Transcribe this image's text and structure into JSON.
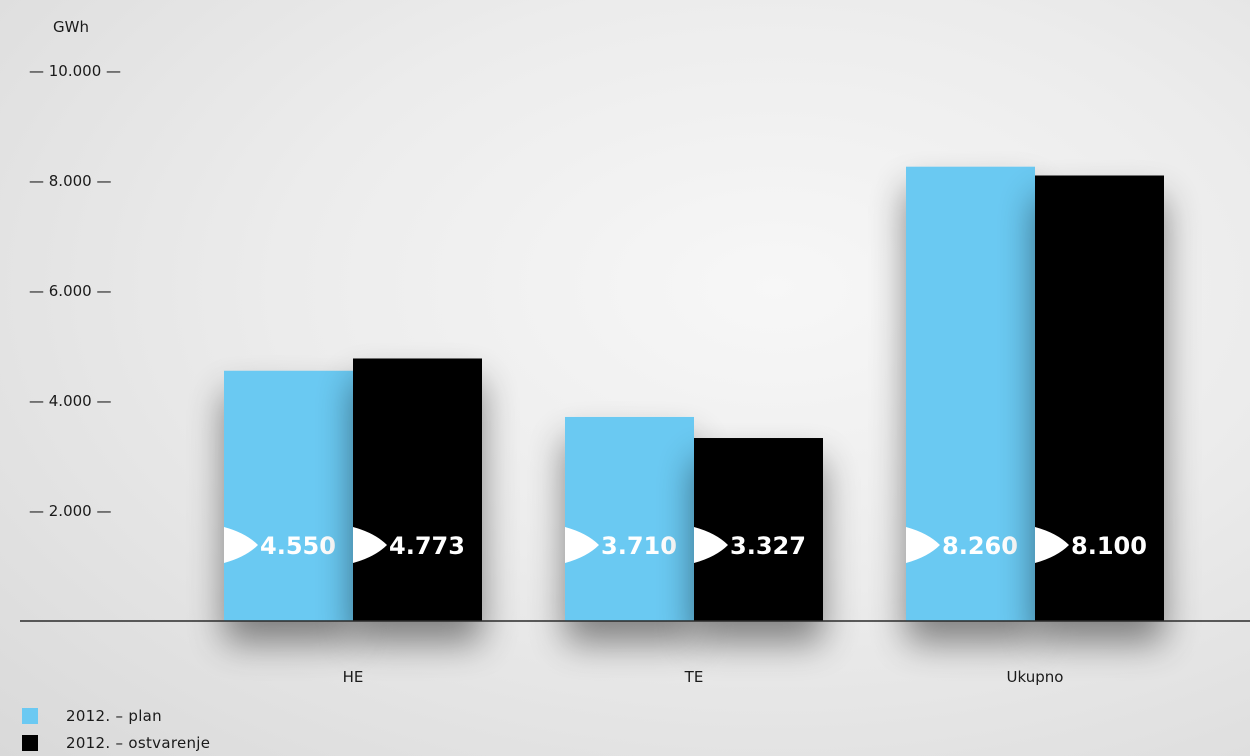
{
  "chart_data": {
    "type": "bar",
    "unit_label": "GWh",
    "categories": [
      "HE",
      "TE",
      "Ukupno"
    ],
    "series": [
      {
        "name": "2012. – plan",
        "color": "#6bc9f2",
        "values": [
          4550,
          3710,
          8260
        ],
        "labels": [
          "4.550",
          "3.710",
          "8.260"
        ]
      },
      {
        "name": "2012. – ostvarenje",
        "color": "#000000",
        "values": [
          4773,
          3327,
          8100
        ],
        "labels": [
          "4.773",
          "3.327",
          "8.100"
        ]
      }
    ],
    "ylim": [
      0,
      10000
    ],
    "yticks": [
      2000,
      4000,
      6000,
      8000,
      10000
    ],
    "ytick_labels": [
      "— 2.000 —",
      "— 4.000 —",
      "— 6.000 —",
      "— 8.000 —",
      "— 10.000 —"
    ],
    "grid": false,
    "legend_position": "bottom-left"
  }
}
